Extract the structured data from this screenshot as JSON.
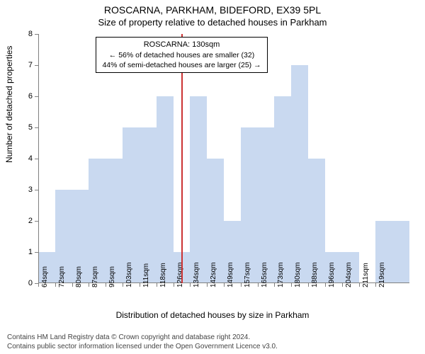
{
  "chart": {
    "type": "histogram",
    "title_main": "ROSCARNA, PARKHAM, BIDEFORD, EX39 5PL",
    "title_sub": "Size of property relative to detached houses in Parkham",
    "ylabel": "Number of detached properties",
    "xlabel": "Distribution of detached houses by size in Parkham",
    "ylim": [
      0,
      8
    ],
    "ytick_step": 1,
    "x_categories": [
      "64sqm",
      "72sqm",
      "80sqm",
      "87sqm",
      "95sqm",
      "103sqm",
      "111sqm",
      "118sqm",
      "126sqm",
      "134sqm",
      "142sqm",
      "149sqm",
      "157sqm",
      "165sqm",
      "173sqm",
      "180sqm",
      "188sqm",
      "196sqm",
      "204sqm",
      "211sqm",
      "219sqm"
    ],
    "values": [
      1,
      3,
      3,
      4,
      4,
      5,
      5,
      6,
      1,
      6,
      4,
      2,
      5,
      5,
      6,
      7,
      4,
      1,
      1,
      0,
      2,
      2
    ],
    "bar_color": "#c9d9f0",
    "bar_border_color": "#c9d9f0",
    "background_color": "#ffffff",
    "axis_color": "#808080",
    "marker_value_x": 130,
    "marker_color": "#cc3333",
    "axis_label_fontsize": 12,
    "tick_fontsize": 11,
    "title_fontsize": 14,
    "annotation": {
      "title": "ROSCARNA: 130sqm",
      "line1": "← 56% of detached houses are smaller (32)",
      "line2": "44% of semi-detached houses are larger (25) →"
    },
    "footer_line1": "Contains HM Land Registry data © Crown copyright and database right 2024.",
    "footer_line2": "Contains public sector information licensed under the Open Government Licence v3.0."
  }
}
